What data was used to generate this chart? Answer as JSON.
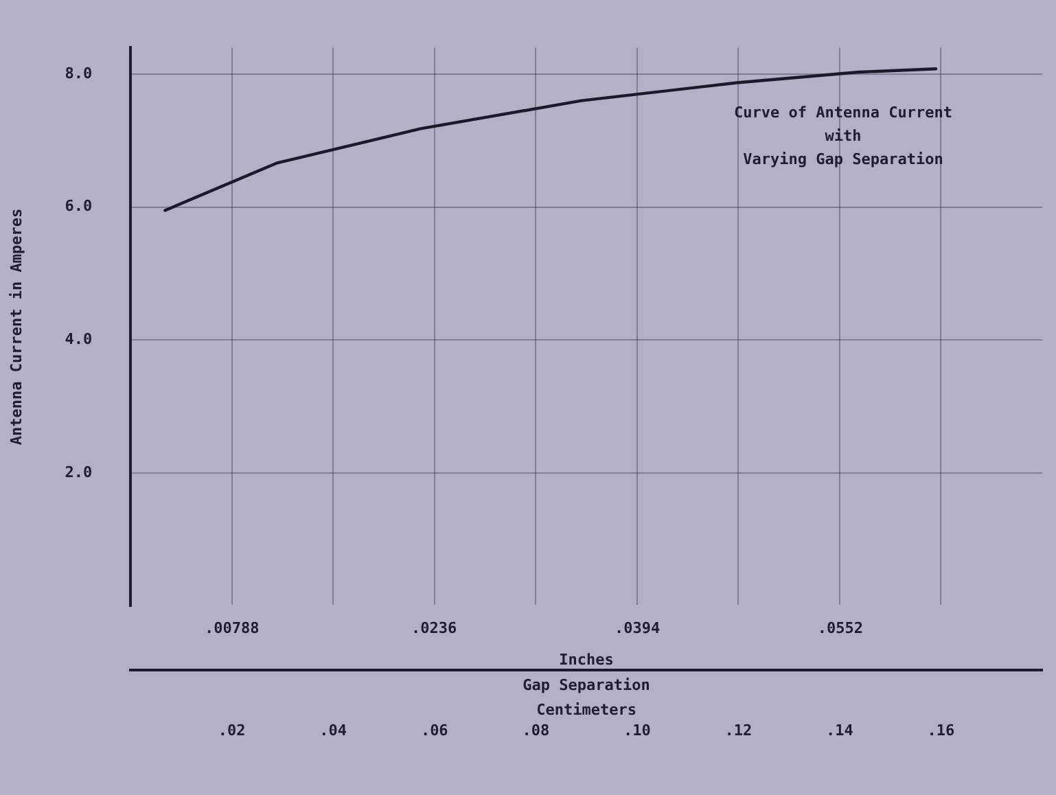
{
  "chart_data": {
    "type": "line",
    "title": "Curve of Antenna Current\nwith\nVarying Gap Separation",
    "ylabel": "Antenna Current in Amperes",
    "xlabel": "Centimeters",
    "x2label": "Inches",
    "annotations": [
      "Gap Separation"
    ],
    "x": [
      0.0068,
      0.0288,
      0.0573,
      0.089,
      0.1197,
      0.1438,
      0.159
    ],
    "series": [
      {
        "color": "#1a1a2a",
        "values": [
          5.95,
          6.66,
          7.18,
          7.6,
          7.87,
          8.03,
          8.08
        ]
      }
    ],
    "xlim": [
      0,
      0.18
    ],
    "xticks": [
      {
        "value": 0.02,
        "label": ".02"
      },
      {
        "value": 0.04,
        "label": ".04"
      },
      {
        "value": 0.06,
        "label": ".06"
      },
      {
        "value": 0.08,
        "label": ".08"
      },
      {
        "value": 0.1,
        "label": ".10"
      },
      {
        "value": 0.12,
        "label": ".12"
      },
      {
        "value": 0.14,
        "label": ".14"
      },
      {
        "value": 0.16,
        "label": ".16"
      }
    ],
    "x2lim": [
      0,
      0.0709
    ],
    "x2ticks": [
      {
        "value": 0.00788,
        "label": ".00788"
      },
      {
        "value": 0.0236,
        "label": ".0236"
      },
      {
        "value": 0.0394,
        "label": ".0394"
      },
      {
        "value": 0.0552,
        "label": ".0552"
      }
    ],
    "ylim": [
      0,
      8.4
    ],
    "yticks": [
      {
        "value": 2,
        "label": "2.0"
      },
      {
        "value": 4,
        "label": "4.0"
      },
      {
        "value": 6,
        "label": "6.0"
      },
      {
        "value": 8,
        "label": "8.0"
      }
    ],
    "grid": true,
    "marker": "none",
    "line_style": "solid",
    "legend": false
  }
}
